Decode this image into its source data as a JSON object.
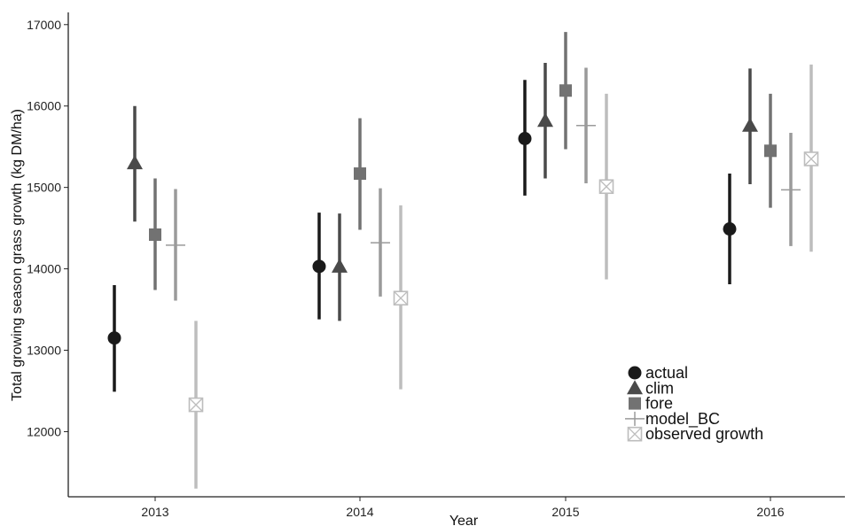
{
  "chart_data": {
    "type": "scatter",
    "title": "",
    "xlabel": "Year",
    "ylabel": "Total growing season grass growth (kg DM/ha)",
    "categories": [
      "2013",
      "2014",
      "2015",
      "2016"
    ],
    "ylim": [
      11200,
      17150
    ],
    "yticks": [
      12000,
      13000,
      14000,
      15000,
      16000,
      17000
    ],
    "grid": false,
    "legend_position": "bottom-right",
    "series": [
      {
        "name": "actual",
        "marker": "circle",
        "color": "#1a1a1a",
        "values": [
          13150,
          14030,
          15600,
          14490
        ],
        "lower": [
          12490,
          13380,
          14900,
          13810
        ],
        "upper": [
          13800,
          14690,
          16320,
          15170
        ]
      },
      {
        "name": "clim",
        "marker": "triangle",
        "color": "#4a4a4a",
        "values": [
          15300,
          14030,
          15820,
          15760
        ],
        "lower": [
          14580,
          13360,
          15110,
          15040
        ],
        "upper": [
          16000,
          14680,
          16530,
          16460
        ]
      },
      {
        "name": "fore",
        "marker": "square",
        "color": "#727272",
        "values": [
          14420,
          15170,
          16190,
          15450
        ],
        "lower": [
          13740,
          14480,
          15470,
          14750
        ],
        "upper": [
          15110,
          15850,
          16910,
          16150
        ]
      },
      {
        "name": "model_BC",
        "marker": "plus",
        "color": "#9a9a9a",
        "values": [
          14290,
          14320,
          15760,
          14970
        ],
        "lower": [
          13610,
          13660,
          15050,
          14280
        ],
        "upper": [
          14980,
          14990,
          16470,
          15670
        ]
      },
      {
        "name": "observed growth",
        "marker": "square-x",
        "color": "#bdbdbd",
        "values": [
          12330,
          13640,
          15010,
          15350
        ],
        "lower": [
          11300,
          12520,
          13870,
          14210
        ],
        "upper": [
          13360,
          14780,
          16150,
          16510
        ]
      }
    ]
  }
}
